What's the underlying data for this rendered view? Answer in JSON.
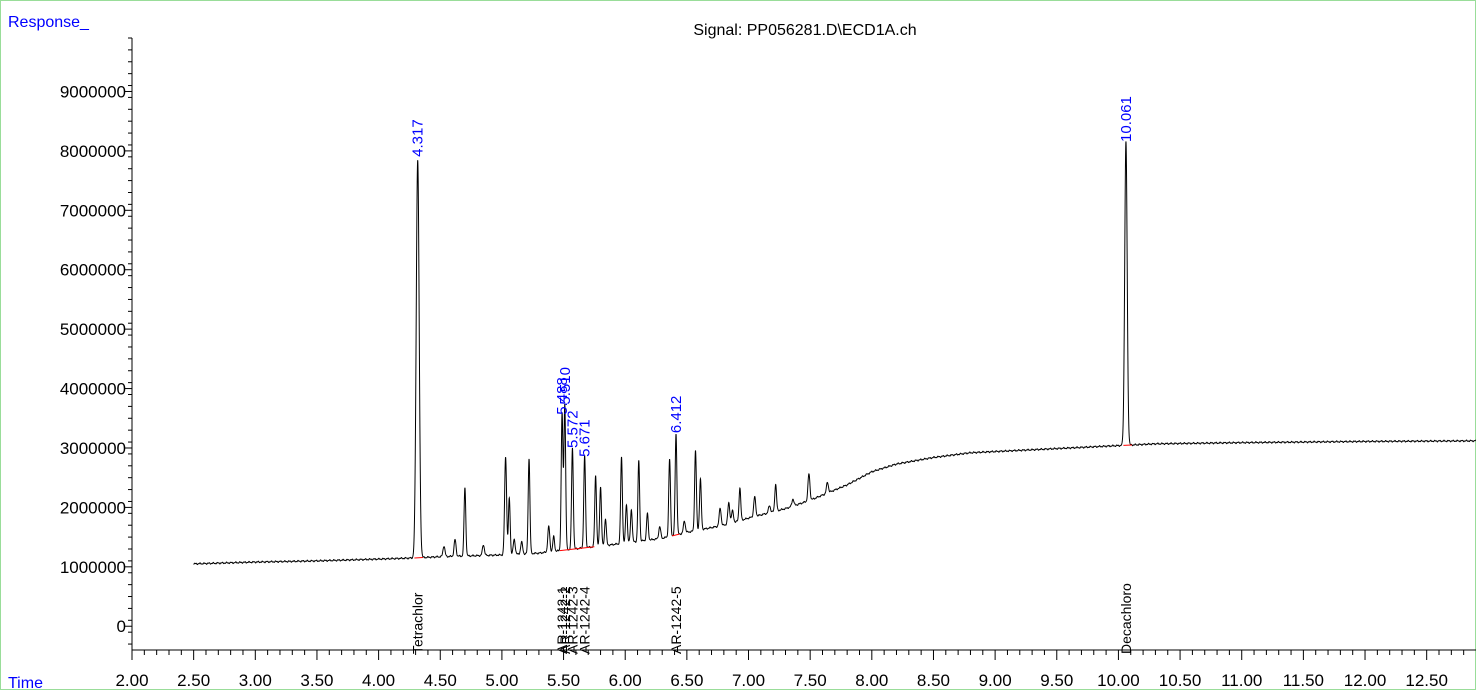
{
  "chart_data": {
    "type": "line",
    "title": "Signal: PP056281.D\\ECD1A.ch",
    "ylabel": "Response_",
    "xlabel": "Time",
    "xlim": [
      2.0,
      12.9
    ],
    "ylim": [
      -400000,
      9900000
    ],
    "x_ticks": [
      2.0,
      2.5,
      3.0,
      3.5,
      4.0,
      4.5,
      5.0,
      5.5,
      6.0,
      6.5,
      7.0,
      7.5,
      8.0,
      8.5,
      9.0,
      9.5,
      10.0,
      10.5,
      11.0,
      11.5,
      12.0,
      12.5
    ],
    "x_tick_labels": [
      "2.00",
      "2.50",
      "3.00",
      "3.50",
      "4.00",
      "4.50",
      "5.00",
      "5.50",
      "6.00",
      "6.50",
      "7.00",
      "7.50",
      "8.00",
      "8.50",
      "9.00",
      "9.50",
      "10.00",
      "10.50",
      "11.00",
      "11.50",
      "12.00",
      "12.50"
    ],
    "y_ticks": [
      0,
      1000000,
      2000000,
      3000000,
      4000000,
      5000000,
      6000000,
      7000000,
      8000000,
      9000000
    ],
    "y_tick_labels": [
      "0",
      "1000000",
      "2000000",
      "3000000",
      "4000000",
      "5000000",
      "6000000",
      "7000000",
      "8000000",
      "9000000"
    ],
    "baseline": [
      [
        2.5,
        1050000
      ],
      [
        3.0,
        1080000
      ],
      [
        3.5,
        1100000
      ],
      [
        4.0,
        1130000
      ],
      [
        4.3,
        1150000
      ],
      [
        4.5,
        1170000
      ],
      [
        5.0,
        1200000
      ],
      [
        5.3,
        1230000
      ],
      [
        5.5,
        1280000
      ],
      [
        5.8,
        1350000
      ],
      [
        6.0,
        1400000
      ],
      [
        6.3,
        1480000
      ],
      [
        6.5,
        1580000
      ],
      [
        6.8,
        1700000
      ],
      [
        7.0,
        1820000
      ],
      [
        7.3,
        1980000
      ],
      [
        7.5,
        2120000
      ],
      [
        7.8,
        2380000
      ],
      [
        8.0,
        2600000
      ],
      [
        8.2,
        2730000
      ],
      [
        8.5,
        2840000
      ],
      [
        8.8,
        2920000
      ],
      [
        9.0,
        2940000
      ],
      [
        9.5,
        2990000
      ],
      [
        10.0,
        3040000
      ],
      [
        10.3,
        3070000
      ],
      [
        11.0,
        3090000
      ],
      [
        12.0,
        3110000
      ],
      [
        12.9,
        3120000
      ]
    ],
    "peaks": [
      {
        "x": 4.317,
        "height": 6700000,
        "w": 0.012
      },
      {
        "x": 4.53,
        "height": 180000,
        "w": 0.008
      },
      {
        "x": 4.62,
        "height": 280000,
        "w": 0.008
      },
      {
        "x": 4.7,
        "height": 1150000,
        "w": 0.007
      },
      {
        "x": 4.85,
        "height": 180000,
        "w": 0.008
      },
      {
        "x": 5.03,
        "height": 1650000,
        "w": 0.008
      },
      {
        "x": 5.06,
        "height": 950000,
        "w": 0.007
      },
      {
        "x": 5.1,
        "height": 250000,
        "w": 0.008
      },
      {
        "x": 5.16,
        "height": 200000,
        "w": 0.008
      },
      {
        "x": 5.22,
        "height": 1600000,
        "w": 0.007
      },
      {
        "x": 5.38,
        "height": 430000,
        "w": 0.008
      },
      {
        "x": 5.42,
        "height": 250000,
        "w": 0.007
      },
      {
        "x": 5.488,
        "height": 2300000,
        "w": 0.007
      },
      {
        "x": 5.51,
        "height": 2450000,
        "w": 0.007
      },
      {
        "x": 5.572,
        "height": 1700000,
        "w": 0.007
      },
      {
        "x": 5.671,
        "height": 1550000,
        "w": 0.007
      },
      {
        "x": 5.76,
        "height": 1200000,
        "w": 0.007
      },
      {
        "x": 5.8,
        "height": 1000000,
        "w": 0.007
      },
      {
        "x": 5.84,
        "height": 450000,
        "w": 0.007
      },
      {
        "x": 5.97,
        "height": 1450000,
        "w": 0.007
      },
      {
        "x": 6.01,
        "height": 650000,
        "w": 0.007
      },
      {
        "x": 6.05,
        "height": 550000,
        "w": 0.007
      },
      {
        "x": 6.11,
        "height": 1350000,
        "w": 0.007
      },
      {
        "x": 6.18,
        "height": 450000,
        "w": 0.007
      },
      {
        "x": 6.28,
        "height": 200000,
        "w": 0.008
      },
      {
        "x": 6.36,
        "height": 1300000,
        "w": 0.007
      },
      {
        "x": 6.412,
        "height": 1700000,
        "w": 0.007
      },
      {
        "x": 6.48,
        "height": 200000,
        "w": 0.008
      },
      {
        "x": 6.57,
        "height": 1350000,
        "w": 0.007
      },
      {
        "x": 6.61,
        "height": 850000,
        "w": 0.007
      },
      {
        "x": 6.77,
        "height": 300000,
        "w": 0.008
      },
      {
        "x": 6.84,
        "height": 350000,
        "w": 0.008
      },
      {
        "x": 6.87,
        "height": 200000,
        "w": 0.008
      },
      {
        "x": 6.93,
        "height": 550000,
        "w": 0.007
      },
      {
        "x": 7.05,
        "height": 330000,
        "w": 0.008
      },
      {
        "x": 7.17,
        "height": 120000,
        "w": 0.008
      },
      {
        "x": 7.22,
        "height": 450000,
        "w": 0.007
      },
      {
        "x": 7.36,
        "height": 120000,
        "w": 0.008
      },
      {
        "x": 7.49,
        "height": 450000,
        "w": 0.008
      },
      {
        "x": 7.64,
        "height": 180000,
        "w": 0.008
      },
      {
        "x": 10.061,
        "height": 5100000,
        "w": 0.01
      }
    ],
    "integration_segments": [
      {
        "x1": 4.29,
        "x2": 4.36
      },
      {
        "x1": 5.47,
        "x2": 5.75
      },
      {
        "x1": 6.38,
        "x2": 6.44
      },
      {
        "x1": 10.04,
        "x2": 10.11
      }
    ],
    "peak_labels": [
      {
        "label": "4.317",
        "x": 4.317,
        "y": 7900000
      },
      {
        "label": "5.488",
        "x": 5.488,
        "y": 3560000
      },
      {
        "label": "5.510",
        "x": 5.51,
        "y": 3730000
      },
      {
        "label": "5.572",
        "x": 5.572,
        "y": 3000000
      },
      {
        "label": "5.671",
        "x": 5.671,
        "y": 2850000
      },
      {
        "label": "6.412",
        "x": 6.412,
        "y": 3250000
      },
      {
        "label": "10.061",
        "x": 10.061,
        "y": 8150000
      }
    ],
    "compound_labels": [
      {
        "label": "Tetrachlor",
        "x": 4.317
      },
      {
        "label": "AR-1242-1",
        "x": 5.488
      },
      {
        "label": "AR-1242-2",
        "x": 5.51
      },
      {
        "label": "AR-1242-3",
        "x": 5.572
      },
      {
        "label": "AR-1242-4",
        "x": 5.671
      },
      {
        "label": "AR-1242-5",
        "x": 6.412
      },
      {
        "label": "Decachloro",
        "x": 10.061
      }
    ],
    "colors": {
      "trace": "#000000",
      "integration": "#ff0000",
      "peak_label": "#0000ff",
      "axis_name": "#0000ff",
      "text": "#000000",
      "frame": "#99dd99"
    },
    "grid": false
  }
}
